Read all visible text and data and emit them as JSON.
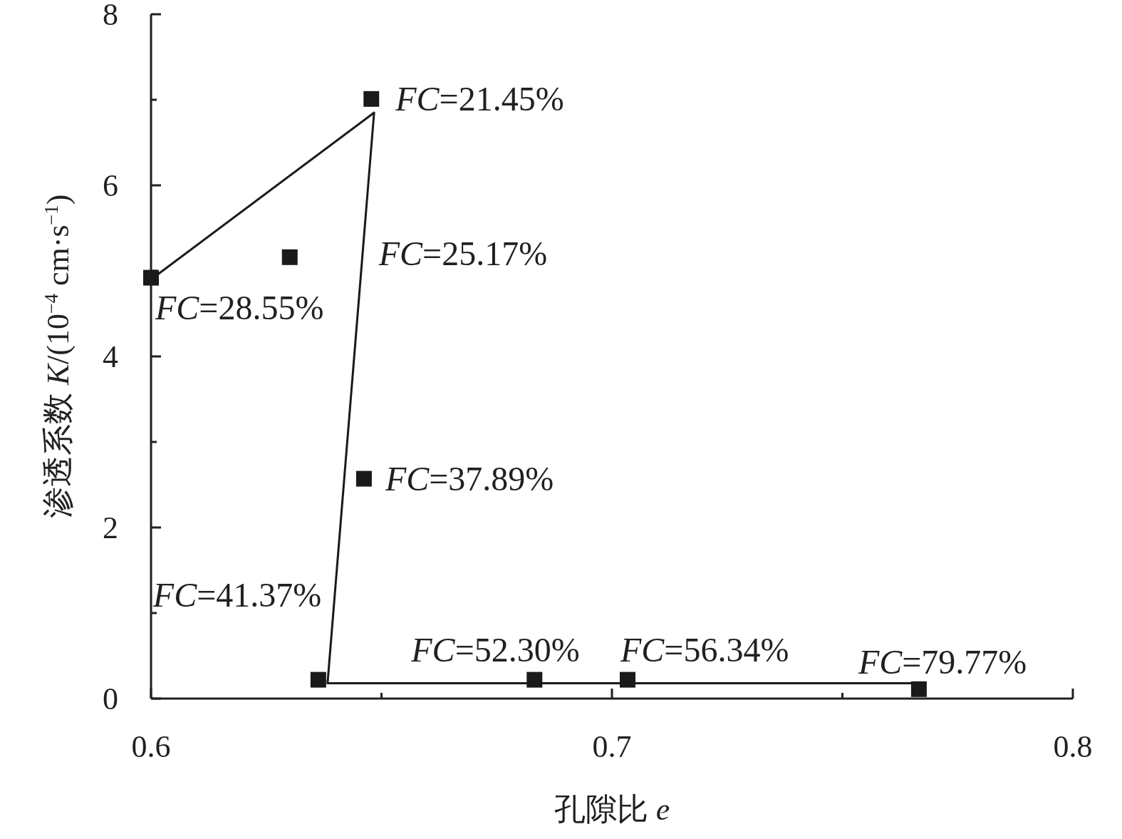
{
  "chart_data": {
    "type": "scatter",
    "xlabel": "孔隙比 *e*",
    "ylabel": "渗透系数 *K*/(10$^{−4}$ cm·s$^{−1}$)",
    "xlim": [
      0.6,
      0.8
    ],
    "ylim": [
      0,
      8
    ],
    "xticks": [
      0.6,
      {
        "value": 0.65,
        "label": null
      },
      0.7,
      {
        "value": 0.75,
        "label": null
      },
      0.8
    ],
    "yticks": [
      0,
      {
        "value": 1,
        "label": null
      },
      2,
      {
        "value": 3,
        "label": null
      },
      4,
      {
        "value": 5,
        "label": null
      },
      6,
      {
        "value": 7,
        "label": null
      },
      8
    ],
    "grid": false,
    "series": [
      {
        "color": "#1a1a1a",
        "marker": "square",
        "x": [
          0.6,
          0.6301,
          0.6478,
          0.6462,
          0.6363,
          0.6832,
          0.7034,
          0.7666
        ],
        "values": [
          4.92,
          5.16,
          7.01,
          2.57,
          0.22,
          0.22,
          0.22,
          0.11
        ]
      },
      {
        "type": "line",
        "color": "#1a1a1a",
        "marker": "none",
        "line_style": "solid",
        "x": [
          0.6,
          0.6484,
          0.6383,
          0.7666
        ],
        "values": [
          4.9,
          6.85,
          0.18,
          0.18
        ]
      }
    ],
    "annotations": [
      {
        "text": "*FC*=21.45%",
        "x": 0.6478,
        "y": 7.01
      },
      {
        "text": "*FC*=25.17%",
        "x": 0.6301,
        "y": 5.16
      },
      {
        "text": "*FC*=28.55%",
        "x": 0.6,
        "y": 4.92
      },
      {
        "text": "*FC*=37.89%",
        "x": 0.6462,
        "y": 2.57
      },
      {
        "text": "*FC*=41.37%",
        "x": 0.6363,
        "y": 0.22
      },
      {
        "text": "*FC*=52.30%",
        "x": 0.6832,
        "y": 0.22
      },
      {
        "text": "*FC*=56.34%",
        "x": 0.7034,
        "y": 0.22
      },
      {
        "text": "*FC*=79.77%",
        "x": 0.7666,
        "y": 0.11
      }
    ]
  }
}
